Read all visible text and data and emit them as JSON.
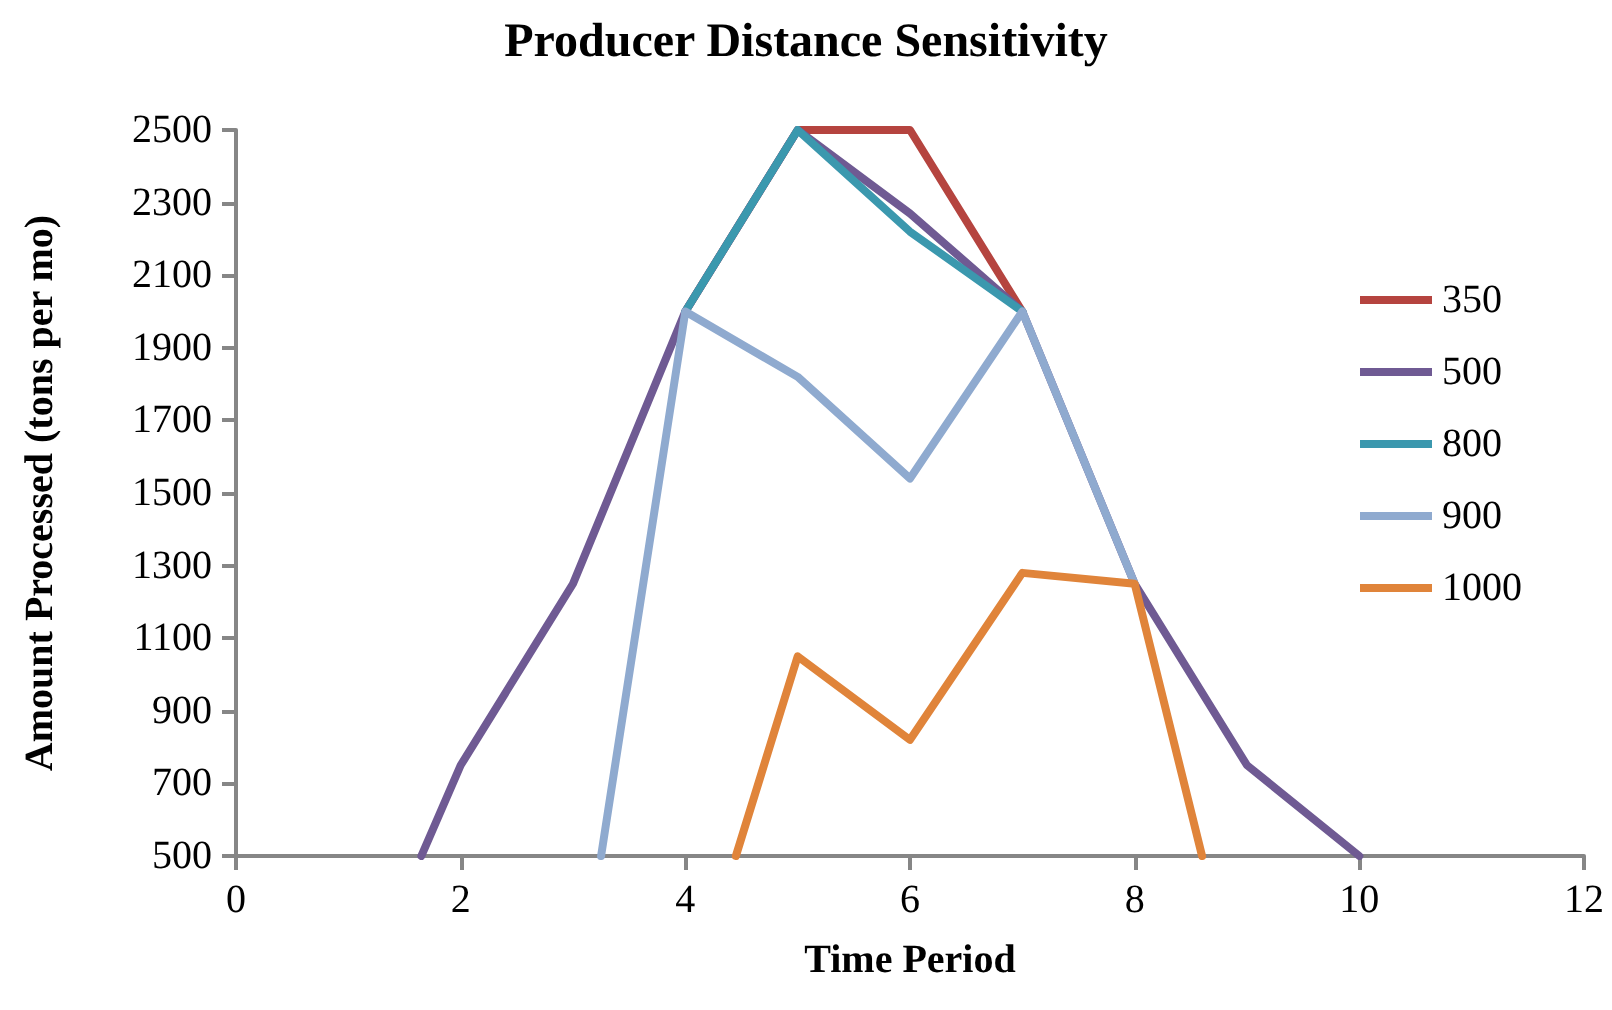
{
  "chart_data": {
    "type": "line",
    "title": "Producer Distance Sensitivity",
    "xlabel": "Time Period",
    "ylabel": "Amount Processed (tons per mo)",
    "xlim": [
      0,
      12
    ],
    "xticks": [
      0,
      2,
      4,
      6,
      8,
      10,
      12
    ],
    "ylim": [
      500,
      2500
    ],
    "yticks": [
      500,
      700,
      900,
      1100,
      1300,
      1500,
      1700,
      1900,
      2100,
      2300,
      2500
    ],
    "grid": false,
    "legend": "right",
    "marker": "none",
    "line_style": "solid",
    "series": [
      {
        "name": "350",
        "color": "#b5443f",
        "x": [
          4,
          5,
          6,
          7
        ],
        "values": [
          2000,
          2500,
          2500,
          2000
        ]
      },
      {
        "name": "500",
        "color": "#6f5a93",
        "x": [
          1.65,
          2,
          3,
          4,
          5,
          6,
          7,
          8,
          9,
          10
        ],
        "values": [
          500,
          750,
          1250,
          2000,
          2500,
          2270,
          2000,
          1250,
          750,
          500
        ]
      },
      {
        "name": "800",
        "color": "#3b98ae",
        "x": [
          4,
          5,
          6,
          7
        ],
        "values": [
          2000,
          2500,
          2220,
          2000
        ]
      },
      {
        "name": "900",
        "color": "#8faacf",
        "x": [
          3.25,
          4,
          5,
          6,
          7,
          8
        ],
        "values": [
          500,
          2000,
          1820,
          1540,
          2000,
          1250
        ]
      },
      {
        "name": "1000",
        "color": "#e0843a",
        "x": [
          4.45,
          5,
          6,
          7,
          8,
          8.6
        ],
        "values": [
          500,
          1050,
          820,
          1280,
          1250,
          500
        ]
      }
    ]
  }
}
